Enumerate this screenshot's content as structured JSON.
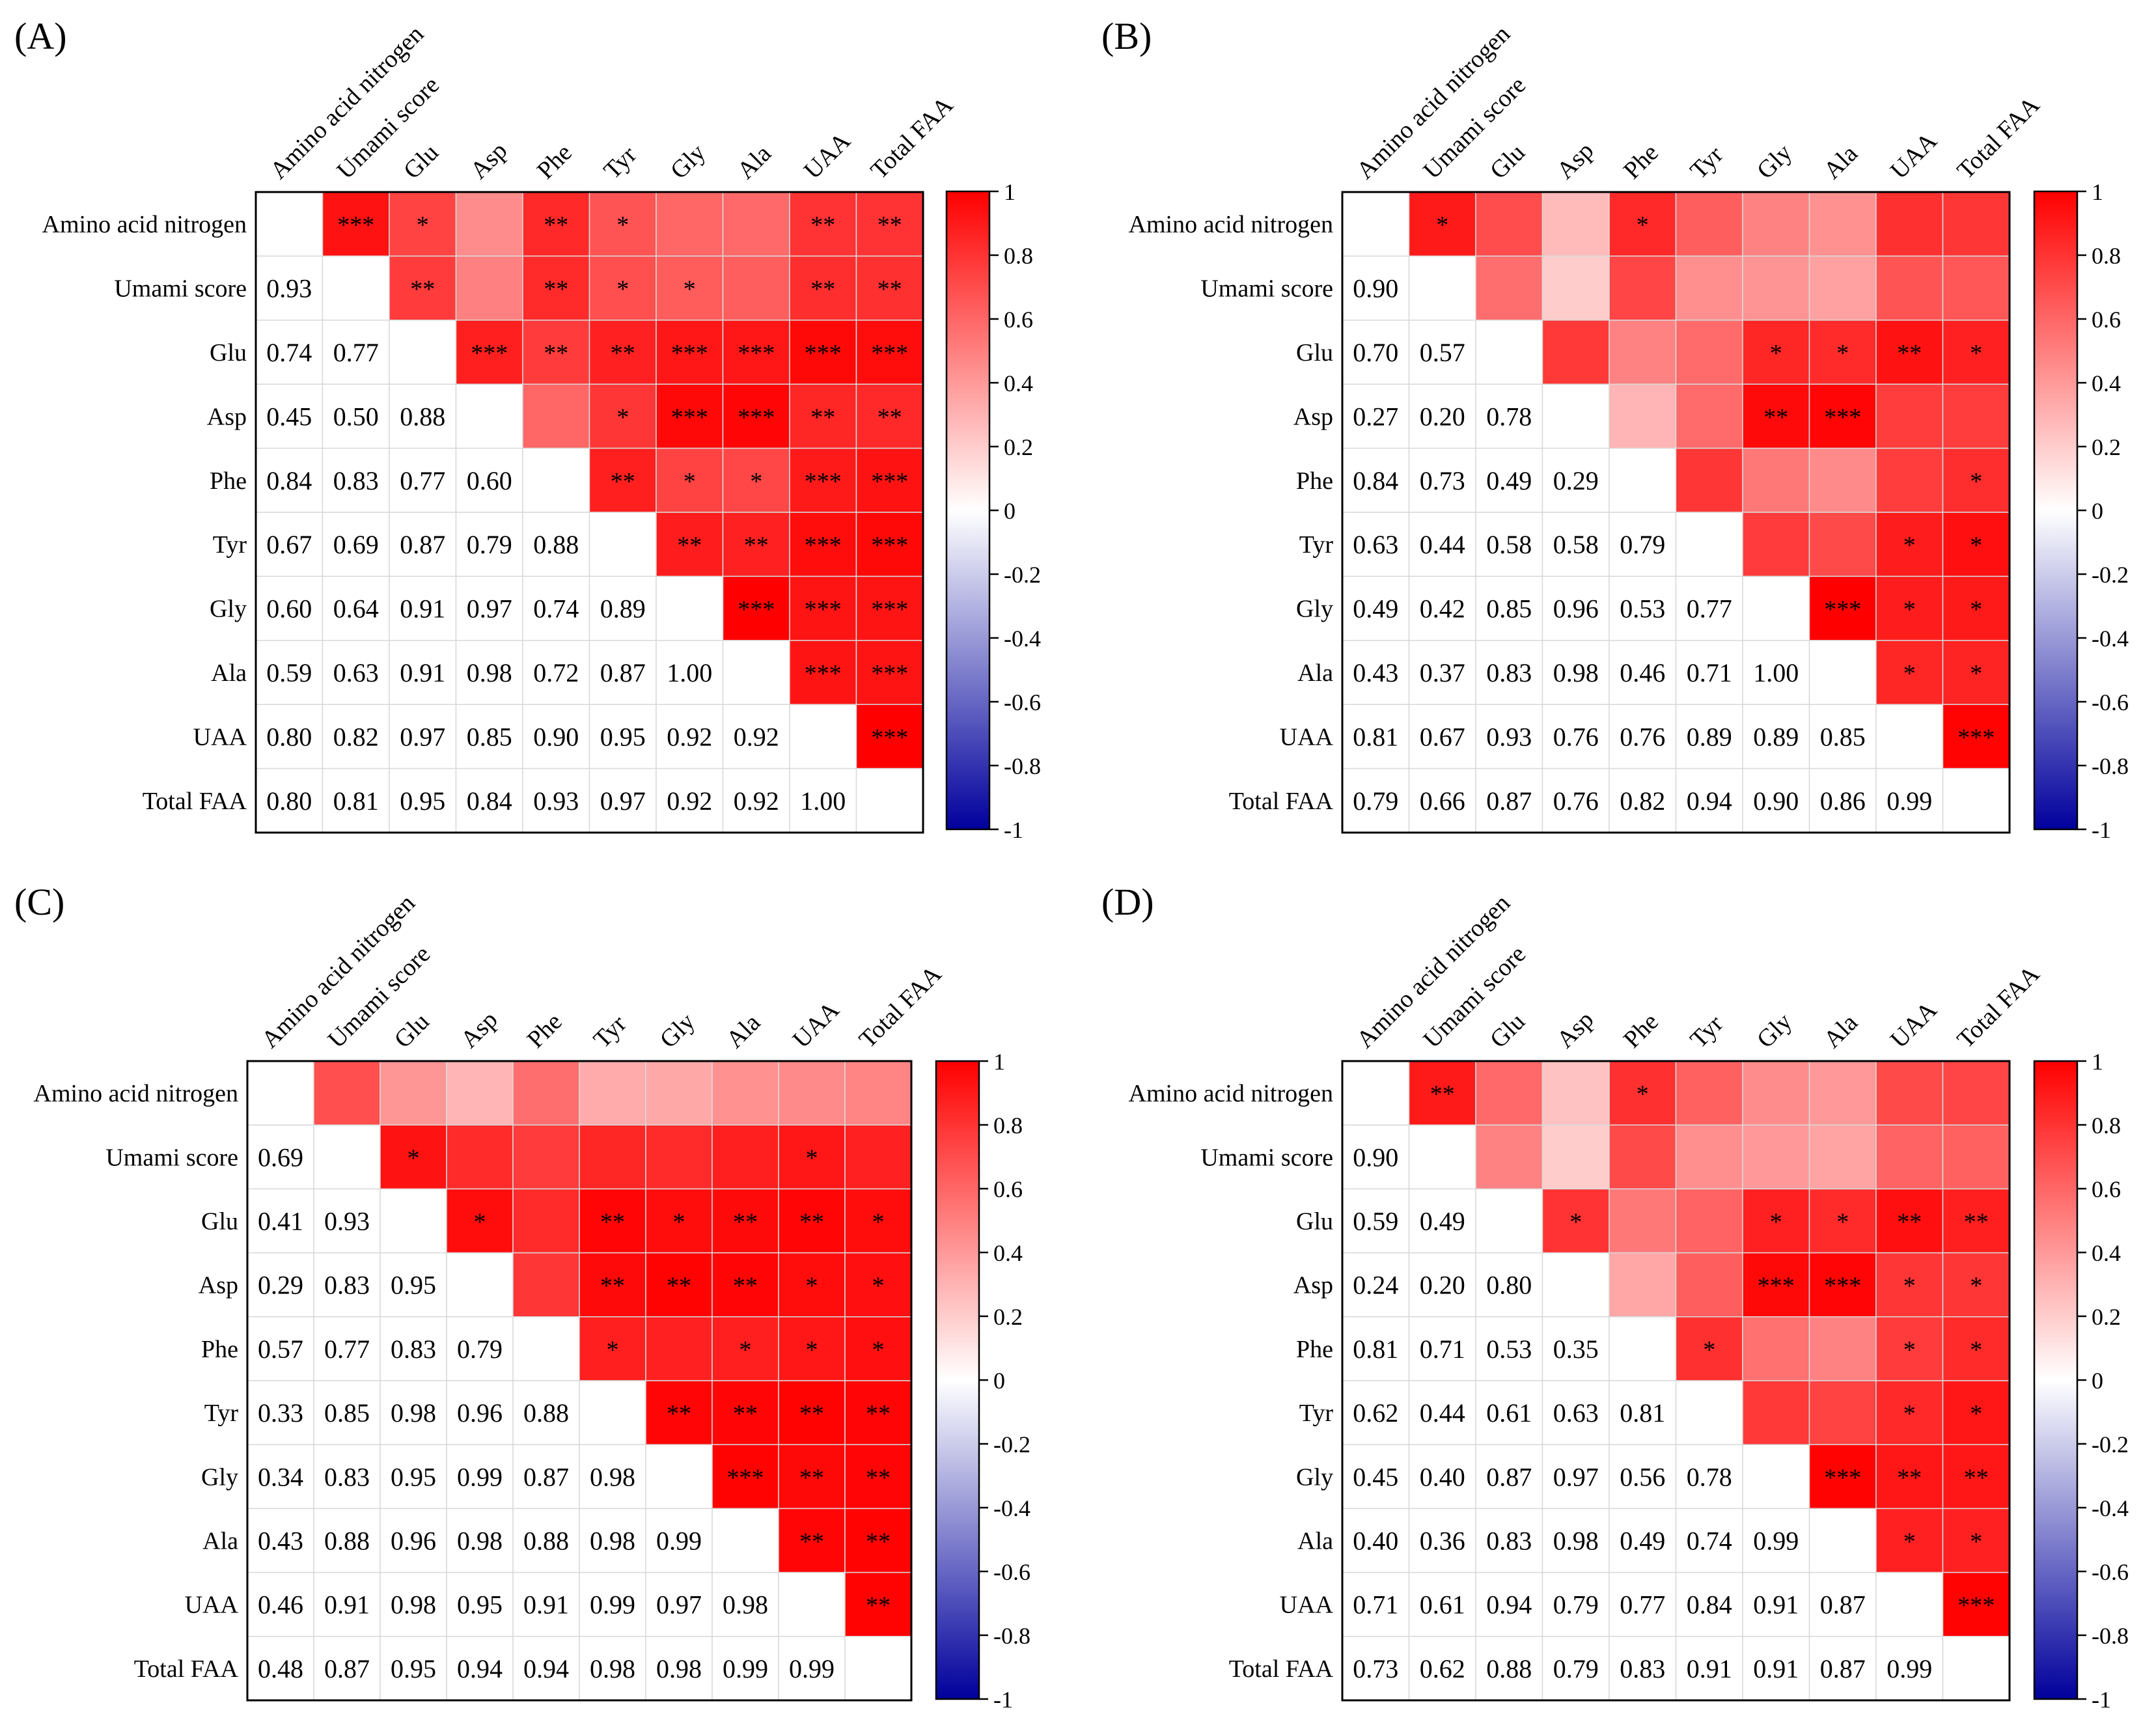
{
  "figure": {
    "variables": [
      "Amino acid nitrogen",
      "Umami score",
      "Glu",
      "Asp",
      "Phe",
      "Tyr",
      "Gly",
      "Ala",
      "UAA",
      "Total FAA"
    ],
    "colorbar_ticks": [
      "1",
      "0.8",
      "0.6",
      "0.4",
      "0.2",
      "0",
      "-0.2",
      "-0.4",
      "-0.6",
      "-0.8",
      "-1"
    ],
    "colors": {
      "positive": "#ff0000",
      "negative": "#00009c",
      "zero": "#ffffff"
    }
  },
  "chart_data": [
    {
      "type": "heatmap",
      "panel_label": "(A)",
      "correlations": [
        [
          null
        ],
        [
          0.93,
          null
        ],
        [
          0.74,
          0.77,
          null
        ],
        [
          0.45,
          0.5,
          0.88,
          null
        ],
        [
          0.84,
          0.83,
          0.77,
          0.6,
          null
        ],
        [
          0.67,
          0.69,
          0.87,
          0.79,
          0.88,
          null
        ],
        [
          0.6,
          0.64,
          0.91,
          0.97,
          0.74,
          0.89,
          null
        ],
        [
          0.59,
          0.63,
          0.91,
          0.98,
          0.72,
          0.87,
          1.0,
          null
        ],
        [
          0.8,
          0.82,
          0.97,
          0.85,
          0.9,
          0.95,
          0.92,
          0.92,
          null
        ],
        [
          0.8,
          0.81,
          0.95,
          0.84,
          0.93,
          0.97,
          0.92,
          0.92,
          1.0,
          null
        ]
      ],
      "significance": [
        [
          "",
          "***",
          "*",
          "",
          "**",
          "*",
          "",
          "",
          "**",
          "**"
        ],
        [
          "",
          "",
          "**",
          "",
          "**",
          "*",
          "*",
          "",
          "**",
          "**"
        ],
        [
          "",
          "",
          "",
          "***",
          "**",
          "**",
          "***",
          "***",
          "***",
          "***"
        ],
        [
          "",
          "",
          "",
          "",
          "",
          "*",
          "***",
          "***",
          "**",
          "**"
        ],
        [
          "",
          "",
          "",
          "",
          "",
          "**",
          "*",
          "*",
          "***",
          "***"
        ],
        [
          "",
          "",
          "",
          "",
          "",
          "",
          "**",
          "**",
          "***",
          "***"
        ],
        [
          "",
          "",
          "",
          "",
          "",
          "",
          "",
          "***",
          "***",
          "***"
        ],
        [
          "",
          "",
          "",
          "",
          "",
          "",
          "",
          "",
          "***",
          "***"
        ],
        [
          "",
          "",
          "",
          "",
          "",
          "",
          "",
          "",
          "",
          "***"
        ],
        [
          "",
          "",
          "",
          "",
          "",
          "",
          "",
          "",
          "",
          ""
        ]
      ]
    },
    {
      "type": "heatmap",
      "panel_label": "(B)",
      "correlations": [
        [
          null
        ],
        [
          0.9,
          null
        ],
        [
          0.7,
          0.57,
          null
        ],
        [
          0.27,
          0.2,
          0.78,
          null
        ],
        [
          0.84,
          0.73,
          0.49,
          0.29,
          null
        ],
        [
          0.63,
          0.44,
          0.58,
          0.58,
          0.79,
          null
        ],
        [
          0.49,
          0.42,
          0.85,
          0.96,
          0.53,
          0.77,
          null
        ],
        [
          0.43,
          0.37,
          0.83,
          0.98,
          0.46,
          0.71,
          1.0,
          null
        ],
        [
          0.81,
          0.67,
          0.93,
          0.76,
          0.76,
          0.89,
          0.89,
          0.85,
          null
        ],
        [
          0.79,
          0.66,
          0.87,
          0.76,
          0.82,
          0.94,
          0.9,
          0.86,
          0.99,
          null
        ]
      ],
      "significance": [
        [
          "",
          "*",
          "",
          "",
          "*",
          "",
          "",
          "",
          "",
          ""
        ],
        [
          "",
          "",
          "",
          "",
          "",
          "",
          "",
          "",
          "",
          ""
        ],
        [
          "",
          "",
          "",
          "",
          "",
          "",
          "*",
          "*",
          "**",
          "*"
        ],
        [
          "",
          "",
          "",
          "",
          "",
          "",
          "**",
          "***",
          "",
          ""
        ],
        [
          "",
          "",
          "",
          "",
          "",
          "",
          "",
          "",
          "",
          "*"
        ],
        [
          "",
          "",
          "",
          "",
          "",
          "",
          "",
          "",
          "*",
          "*"
        ],
        [
          "",
          "",
          "",
          "",
          "",
          "",
          "",
          "***",
          "*",
          "*"
        ],
        [
          "",
          "",
          "",
          "",
          "",
          "",
          "",
          "",
          "*",
          "*"
        ],
        [
          "",
          "",
          "",
          "",
          "",
          "",
          "",
          "",
          "",
          "***"
        ],
        [
          "",
          "",
          "",
          "",
          "",
          "",
          "",
          "",
          "",
          ""
        ]
      ]
    },
    {
      "type": "heatmap",
      "panel_label": "(C)",
      "correlations": [
        [
          null
        ],
        [
          0.69,
          null
        ],
        [
          0.41,
          0.93,
          null
        ],
        [
          0.29,
          0.83,
          0.95,
          null
        ],
        [
          0.57,
          0.77,
          0.83,
          0.79,
          null
        ],
        [
          0.33,
          0.85,
          0.98,
          0.96,
          0.88,
          null
        ],
        [
          0.34,
          0.83,
          0.95,
          0.99,
          0.87,
          0.98,
          null
        ],
        [
          0.43,
          0.88,
          0.96,
          0.98,
          0.88,
          0.98,
          0.99,
          null
        ],
        [
          0.46,
          0.91,
          0.98,
          0.95,
          0.91,
          0.99,
          0.97,
          0.98,
          null
        ],
        [
          0.48,
          0.87,
          0.95,
          0.94,
          0.94,
          0.98,
          0.98,
          0.99,
          0.99,
          null
        ]
      ],
      "significance": [
        [
          "",
          "",
          "",
          "",
          "",
          "",
          "",
          "",
          "",
          ""
        ],
        [
          "",
          "",
          "*",
          "",
          "",
          "",
          "",
          "",
          "*",
          ""
        ],
        [
          "",
          "",
          "",
          "*",
          "",
          "**",
          "*",
          "**",
          "**",
          "*"
        ],
        [
          "",
          "",
          "",
          "",
          "",
          "**",
          "**",
          "**",
          "*",
          "*"
        ],
        [
          "",
          "",
          "",
          "",
          "",
          "*",
          "",
          "*",
          "*",
          "*"
        ],
        [
          "",
          "",
          "",
          "",
          "",
          "",
          "**",
          "**",
          "**",
          "**"
        ],
        [
          "",
          "",
          "",
          "",
          "",
          "",
          "",
          "***",
          "**",
          "**"
        ],
        [
          "",
          "",
          "",
          "",
          "",
          "",
          "",
          "",
          "**",
          "**"
        ],
        [
          "",
          "",
          "",
          "",
          "",
          "",
          "",
          "",
          "",
          "**"
        ],
        [
          "",
          "",
          "",
          "",
          "",
          "",
          "",
          "",
          "",
          ""
        ]
      ]
    },
    {
      "type": "heatmap",
      "panel_label": "(D)",
      "correlations": [
        [
          null
        ],
        [
          0.9,
          null
        ],
        [
          0.59,
          0.49,
          null
        ],
        [
          0.24,
          0.2,
          0.8,
          null
        ],
        [
          0.81,
          0.71,
          0.53,
          0.35,
          null
        ],
        [
          0.62,
          0.44,
          0.61,
          0.63,
          0.81,
          null
        ],
        [
          0.45,
          0.4,
          0.87,
          0.97,
          0.56,
          0.78,
          null
        ],
        [
          0.4,
          0.36,
          0.83,
          0.98,
          0.49,
          0.74,
          0.99,
          null
        ],
        [
          0.71,
          0.61,
          0.94,
          0.79,
          0.77,
          0.84,
          0.91,
          0.87,
          null
        ],
        [
          0.73,
          0.62,
          0.88,
          0.79,
          0.83,
          0.91,
          0.91,
          0.87,
          0.99,
          null
        ]
      ],
      "significance": [
        [
          "",
          "**",
          "",
          "",
          "*",
          "",
          "",
          "",
          "",
          ""
        ],
        [
          "",
          "",
          "",
          "",
          "",
          "",
          "",
          "",
          "",
          ""
        ],
        [
          "",
          "",
          "",
          "*",
          "",
          "",
          "*",
          "*",
          "**",
          "**"
        ],
        [
          "",
          "",
          "",
          "",
          "",
          "",
          "***",
          "***",
          "*",
          "*"
        ],
        [
          "",
          "",
          "",
          "",
          "",
          "*",
          "",
          "",
          "*",
          "*"
        ],
        [
          "",
          "",
          "",
          "",
          "",
          "",
          "",
          "",
          "*",
          "*"
        ],
        [
          "",
          "",
          "",
          "",
          "",
          "",
          "",
          "***",
          "**",
          "**"
        ],
        [
          "",
          "",
          "",
          "",
          "",
          "",
          "",
          "",
          "*",
          "*"
        ],
        [
          "",
          "",
          "",
          "",
          "",
          "",
          "",
          "",
          "",
          "***"
        ],
        [
          "",
          "",
          "",
          "",
          "",
          "",
          "",
          "",
          "",
          ""
        ]
      ]
    }
  ]
}
